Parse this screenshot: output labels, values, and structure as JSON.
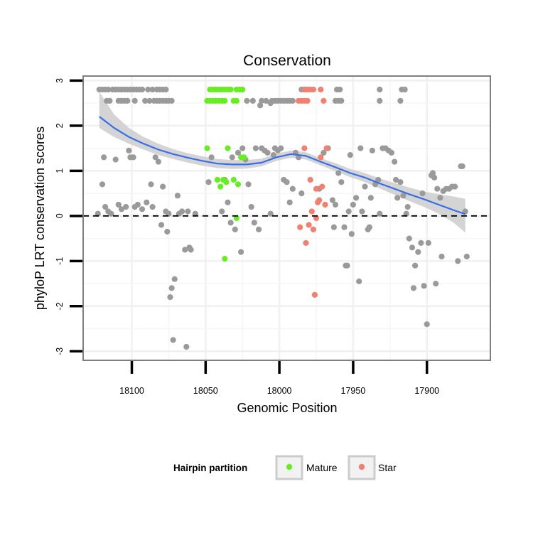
{
  "chart_data": {
    "type": "scatter",
    "title": "Conservation",
    "xlabel": "Genomic Position",
    "ylabel": "phyloP LRT conservation scores",
    "x_reversed": true,
    "xlim": [
      18133,
      17857
    ],
    "ylim": [
      -3.2,
      3.1
    ],
    "x_ticks": [
      18100,
      18050,
      18000,
      17950,
      17900
    ],
    "x_tick_labels": [
      "18100",
      "18050",
      "18000",
      "17950",
      "17900"
    ],
    "y_ticks": [
      -3,
      -2,
      -1,
      0,
      1,
      2,
      3
    ],
    "y_tick_labels": [
      "-3",
      "-2",
      "-1",
      "0",
      "1",
      "2",
      "3"
    ],
    "reference_line": {
      "y": 0,
      "style": "dashed",
      "color": "#000000"
    },
    "grid": true,
    "legend": {
      "title": "Hairpin partition",
      "position": "bottom",
      "entries": [
        {
          "label": "Mature",
          "color": "#66ee22"
        },
        {
          "label": "Star",
          "color": "#f08070"
        }
      ]
    },
    "colors": {
      "other": "#9a9a9a",
      "Mature": "#66ee22",
      "Star": "#f08070",
      "smooth": "#3a6ee8",
      "band": "#cccccc"
    },
    "series": [
      {
        "name": "Other",
        "color": "#9a9a9a",
        "points": [
          [
            18122,
            2.8
          ],
          [
            18120,
            2.8
          ],
          [
            18118,
            2.8
          ],
          [
            18116,
            2.8
          ],
          [
            18113,
            2.8
          ],
          [
            18111,
            2.8
          ],
          [
            18109,
            2.8
          ],
          [
            18107,
            2.8
          ],
          [
            18105,
            2.8
          ],
          [
            18103,
            2.8
          ],
          [
            18101,
            2.8
          ],
          [
            18099,
            2.8
          ],
          [
            18097,
            2.8
          ],
          [
            18095,
            2.8
          ],
          [
            18093,
            2.8
          ],
          [
            18089,
            2.8
          ],
          [
            18086,
            2.8
          ],
          [
            18083,
            2.8
          ],
          [
            18081,
            2.8
          ],
          [
            18079,
            2.8
          ],
          [
            18077,
            2.8
          ],
          [
            17985,
            2.8
          ],
          [
            17983,
            2.8
          ],
          [
            17961,
            2.8
          ],
          [
            17959,
            2.8
          ],
          [
            17932,
            2.8
          ],
          [
            17917,
            2.8
          ],
          [
            17915,
            2.8
          ],
          [
            18117,
            2.55
          ],
          [
            18115,
            2.55
          ],
          [
            18109,
            2.55
          ],
          [
            18107,
            2.55
          ],
          [
            18105,
            2.55
          ],
          [
            18103,
            2.55
          ],
          [
            18098,
            2.55
          ],
          [
            18091,
            2.55
          ],
          [
            18088,
            2.55
          ],
          [
            18085,
            2.55
          ],
          [
            18083,
            2.55
          ],
          [
            18081,
            2.55
          ],
          [
            18079,
            2.55
          ],
          [
            18077,
            2.55
          ],
          [
            18075,
            2.55
          ],
          [
            18073,
            2.55
          ],
          [
            18022,
            2.55
          ],
          [
            18018,
            2.55
          ],
          [
            18012,
            2.55
          ],
          [
            18009,
            2.55
          ],
          [
            18005,
            2.55
          ],
          [
            18003,
            2.55
          ],
          [
            18001,
            2.55
          ],
          [
            17999,
            2.55
          ],
          [
            17997,
            2.55
          ],
          [
            17995,
            2.55
          ],
          [
            17993,
            2.55
          ],
          [
            17991,
            2.55
          ],
          [
            17962,
            2.55
          ],
          [
            17960,
            2.55
          ],
          [
            17958,
            2.55
          ],
          [
            17932,
            2.55
          ],
          [
            17918,
            2.55
          ],
          [
            18013,
            2.45
          ],
          [
            18006,
            2.5
          ],
          [
            18123,
            0.05
          ],
          [
            18120,
            0.7
          ],
          [
            18119,
            1.3
          ],
          [
            18118,
            0.2
          ],
          [
            18116,
            0.1
          ],
          [
            18114,
            0.05
          ],
          [
            18111,
            1.25
          ],
          [
            18109,
            0.25
          ],
          [
            18107,
            0.15
          ],
          [
            18104,
            0.2
          ],
          [
            18102,
            1.45
          ],
          [
            18101,
            1.3
          ],
          [
            18099,
            1.3
          ],
          [
            18098,
            0.2
          ],
          [
            18096,
            0.25
          ],
          [
            18093,
            0.15
          ],
          [
            18090,
            0.3
          ],
          [
            18087,
            0.7
          ],
          [
            18086,
            0.2
          ],
          [
            18084,
            1.3
          ],
          [
            18082,
            1.2
          ],
          [
            18080,
            -0.2
          ],
          [
            18079,
            0.65
          ],
          [
            18077,
            0.1
          ],
          [
            18076,
            -0.35
          ],
          [
            18075,
            0.05
          ],
          [
            18074,
            -1.8
          ],
          [
            18073,
            -1.6
          ],
          [
            18072,
            -2.75
          ],
          [
            18071,
            -1.4
          ],
          [
            18069,
            0.45
          ],
          [
            18068,
            0.05
          ],
          [
            18066,
            0.1
          ],
          [
            18064,
            -0.75
          ],
          [
            18063,
            -2.9
          ],
          [
            18062,
            0.1
          ],
          [
            18061,
            -0.7
          ],
          [
            18060,
            -0.75
          ],
          [
            18057,
            0.05
          ],
          [
            18048,
            0.75
          ],
          [
            18046,
            1.3
          ],
          [
            18039,
            0.1
          ],
          [
            18037,
            0.8
          ],
          [
            18035,
            0.3
          ],
          [
            18033,
            -0.15
          ],
          [
            18032,
            1.3
          ],
          [
            18030,
            -0.3
          ],
          [
            18028,
            1.4
          ],
          [
            18026,
            -0.8
          ],
          [
            18025,
            1.5
          ],
          [
            18023,
            1.25
          ],
          [
            18021,
            0.7
          ],
          [
            18019,
            0.2
          ],
          [
            18017,
            -0.15
          ],
          [
            18016,
            1.5
          ],
          [
            18014,
            -0.3
          ],
          [
            18012,
            1.5
          ],
          [
            18010,
            1.45
          ],
          [
            18008,
            1.4
          ],
          [
            18006,
            0.05
          ],
          [
            18004,
            1.35
          ],
          [
            18003,
            1.5
          ],
          [
            18001,
            1.45
          ],
          [
            17999,
            1.5
          ],
          [
            17997,
            0.8
          ],
          [
            17995,
            0.75
          ],
          [
            17993,
            0.3
          ],
          [
            17991,
            0.6
          ],
          [
            17989,
            1.4
          ],
          [
            17987,
            1.3
          ],
          [
            17985,
            0.5
          ],
          [
            17973,
            0.6
          ],
          [
            17970,
            1.4
          ],
          [
            17967,
            1.5
          ],
          [
            17964,
            0.35
          ],
          [
            17963,
            -0.25
          ],
          [
            17962,
            0.25
          ],
          [
            17960,
            0.95
          ],
          [
            17958,
            0.75
          ],
          [
            17956,
            -0.25
          ],
          [
            17955,
            -1.1
          ],
          [
            17954,
            -1.1
          ],
          [
            17953,
            0.1
          ],
          [
            17952,
            1.35
          ],
          [
            17951,
            -0.4
          ],
          [
            17950,
            0.25
          ],
          [
            17948,
            0.4
          ],
          [
            17946,
            -1.45
          ],
          [
            17945,
            1.5
          ],
          [
            17944,
            0.1
          ],
          [
            17942,
            0.65
          ],
          [
            17940,
            -0.3
          ],
          [
            17939,
            -0.25
          ],
          [
            17938,
            0.4
          ],
          [
            17937,
            1.45
          ],
          [
            17935,
            0.7
          ],
          [
            17933,
            0.8
          ],
          [
            17932,
            0.05
          ],
          [
            17930,
            1.5
          ],
          [
            17928,
            1.5
          ],
          [
            17926,
            1.45
          ],
          [
            17924,
            1.4
          ],
          [
            17922,
            1.2
          ],
          [
            17921,
            0.8
          ],
          [
            17920,
            0.4
          ],
          [
            17918,
            0.75
          ],
          [
            17916,
            0.45
          ],
          [
            17914,
            0.05
          ],
          [
            17913,
            0.2
          ],
          [
            17912,
            -0.5
          ],
          [
            17910,
            -0.7
          ],
          [
            17909,
            -1.6
          ],
          [
            17908,
            -1.1
          ],
          [
            17906,
            -0.8
          ],
          [
            17904,
            -0.6
          ],
          [
            17903,
            0.5
          ],
          [
            17902,
            -1.55
          ],
          [
            17900,
            -2.4
          ],
          [
            17899,
            -0.6
          ],
          [
            17897,
            0.9
          ],
          [
            17896,
            0.95
          ],
          [
            17895,
            0.85
          ],
          [
            17894,
            -1.5
          ],
          [
            17893,
            0.6
          ],
          [
            17891,
            0.4
          ],
          [
            17890,
            -0.9
          ],
          [
            17889,
            0.55
          ],
          [
            17887,
            0.6
          ],
          [
            17885,
            0.6
          ],
          [
            17883,
            0.65
          ],
          [
            17881,
            0.65
          ],
          [
            17879,
            -1.0
          ],
          [
            17877,
            1.1
          ],
          [
            17876,
            1.1
          ],
          [
            17874,
            0.1
          ],
          [
            17873,
            -0.9
          ]
        ]
      },
      {
        "name": "Mature",
        "color": "#66ee22",
        "points": [
          [
            18047,
            2.8
          ],
          [
            18045,
            2.8
          ],
          [
            18043,
            2.8
          ],
          [
            18041,
            2.8
          ],
          [
            18039,
            2.8
          ],
          [
            18037,
            2.8
          ],
          [
            18035,
            2.8
          ],
          [
            18033,
            2.8
          ],
          [
            18029,
            2.8
          ],
          [
            18027,
            2.8
          ],
          [
            18025,
            2.8
          ],
          [
            18049,
            2.55
          ],
          [
            18047,
            2.55
          ],
          [
            18045,
            2.55
          ],
          [
            18043,
            2.55
          ],
          [
            18041,
            2.55
          ],
          [
            18039,
            2.55
          ],
          [
            18037,
            2.55
          ],
          [
            18031,
            2.55
          ],
          [
            18029,
            2.55
          ],
          [
            18049,
            1.5
          ],
          [
            18042,
            0.8
          ],
          [
            18040,
            0.65
          ],
          [
            18038,
            0.8
          ],
          [
            18036,
            0.75
          ],
          [
            18035,
            1.5
          ],
          [
            18031,
            0.8
          ],
          [
            18029,
            -0.05
          ],
          [
            18028,
            0.7
          ],
          [
            18026,
            1.3
          ],
          [
            18024,
            1.3
          ],
          [
            18037,
            -0.95
          ]
        ]
      },
      {
        "name": "Star",
        "color": "#f08070",
        "points": [
          [
            17983,
            2.8
          ],
          [
            17981,
            2.8
          ],
          [
            17979,
            2.8
          ],
          [
            17977,
            2.8
          ],
          [
            17972,
            2.8
          ],
          [
            17987,
            2.55
          ],
          [
            17985,
            2.55
          ],
          [
            17983,
            2.55
          ],
          [
            17981,
            2.55
          ],
          [
            17970,
            2.55
          ],
          [
            17983,
            1.5
          ],
          [
            17968,
            1.5
          ],
          [
            17972,
            1.3
          ],
          [
            17979,
            0.8
          ],
          [
            17975,
            0.6
          ],
          [
            17971,
            0.65
          ],
          [
            17973,
            0.35
          ],
          [
            17974,
            0.3
          ],
          [
            17978,
            0.1
          ],
          [
            17980,
            -0.2
          ],
          [
            17982,
            -0.6
          ],
          [
            17977,
            -0.3
          ],
          [
            17975,
            -0.05
          ],
          [
            17969,
            0.25
          ],
          [
            17976,
            -1.75
          ],
          [
            17986,
            -0.25
          ]
        ]
      }
    ],
    "smooth": {
      "x": [
        18122,
        18112,
        18102,
        18092,
        18082,
        18072,
        18062,
        18052,
        18042,
        18032,
        18022,
        18012,
        18002,
        17992,
        17982,
        17972,
        17962,
        17952,
        17942,
        17932,
        17922,
        17912,
        17902,
        17892,
        17882,
        17874
      ],
      "y": [
        2.2,
        1.95,
        1.75,
        1.6,
        1.47,
        1.37,
        1.29,
        1.22,
        1.16,
        1.14,
        1.14,
        1.18,
        1.3,
        1.37,
        1.33,
        1.2,
        1.08,
        0.95,
        0.85,
        0.72,
        0.6,
        0.48,
        0.37,
        0.25,
        0.13,
        0.04
      ],
      "lower": [
        1.95,
        1.75,
        1.6,
        1.47,
        1.35,
        1.26,
        1.18,
        1.11,
        1.06,
        1.04,
        1.05,
        1.1,
        1.22,
        1.29,
        1.25,
        1.12,
        0.99,
        0.86,
        0.75,
        0.61,
        0.47,
        0.33,
        0.2,
        0.05,
        -0.15,
        -0.37
      ],
      "upper": [
        2.75,
        2.25,
        1.95,
        1.75,
        1.6,
        1.48,
        1.39,
        1.32,
        1.26,
        1.24,
        1.24,
        1.27,
        1.38,
        1.45,
        1.41,
        1.28,
        1.17,
        1.04,
        0.95,
        0.83,
        0.73,
        0.63,
        0.54,
        0.48,
        0.43,
        0.38
      ]
    }
  }
}
